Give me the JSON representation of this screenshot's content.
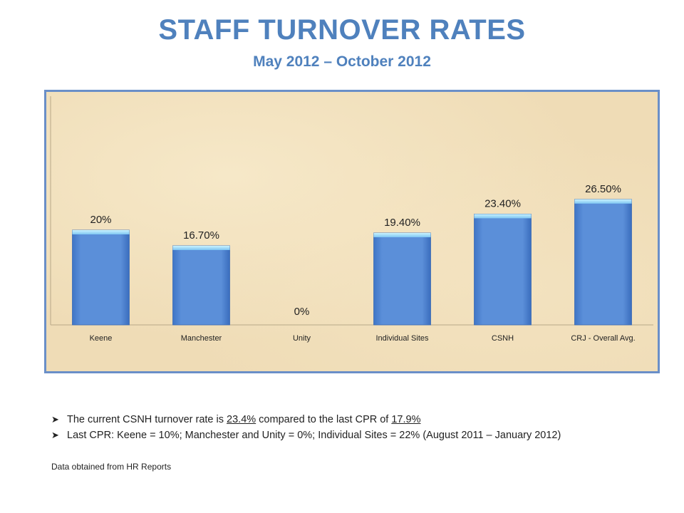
{
  "title": "STAFF TURNOVER RATES",
  "subtitle": "May 2012 – October 2012",
  "chart_data": {
    "type": "bar",
    "categories": [
      "Keene",
      "Manchester",
      "Unity",
      "Individual Sites",
      "CSNH",
      "CRJ - Overall Avg."
    ],
    "values": [
      20,
      16.7,
      0,
      19.4,
      23.4,
      26.5
    ],
    "data_labels": [
      "20%",
      "16.70%",
      "0%",
      "19.40%",
      "23.40%",
      "26.50%"
    ],
    "ylim": [
      0,
      30
    ],
    "grid": false,
    "legend": "none",
    "colors": {
      "bar": "#5b8fd9",
      "bar_top": "#a6e7ff",
      "frame": "#6a8fc8",
      "background": "#efdcb6"
    }
  },
  "bullets": [
    {
      "pre": "The current CSNH turnover rate is ",
      "val1": "23.4%",
      "mid": " compared to the last CPR of ",
      "val2": "17.9%"
    },
    {
      "text": "Last CPR: Keene = 10%; Manchester and Unity = 0%; Individual Sites = 22% (August 2011 – January 2012)"
    }
  ],
  "bullet_icon": "arrow-bullet-icon",
  "source_note": "Data obtained from HR Reports"
}
